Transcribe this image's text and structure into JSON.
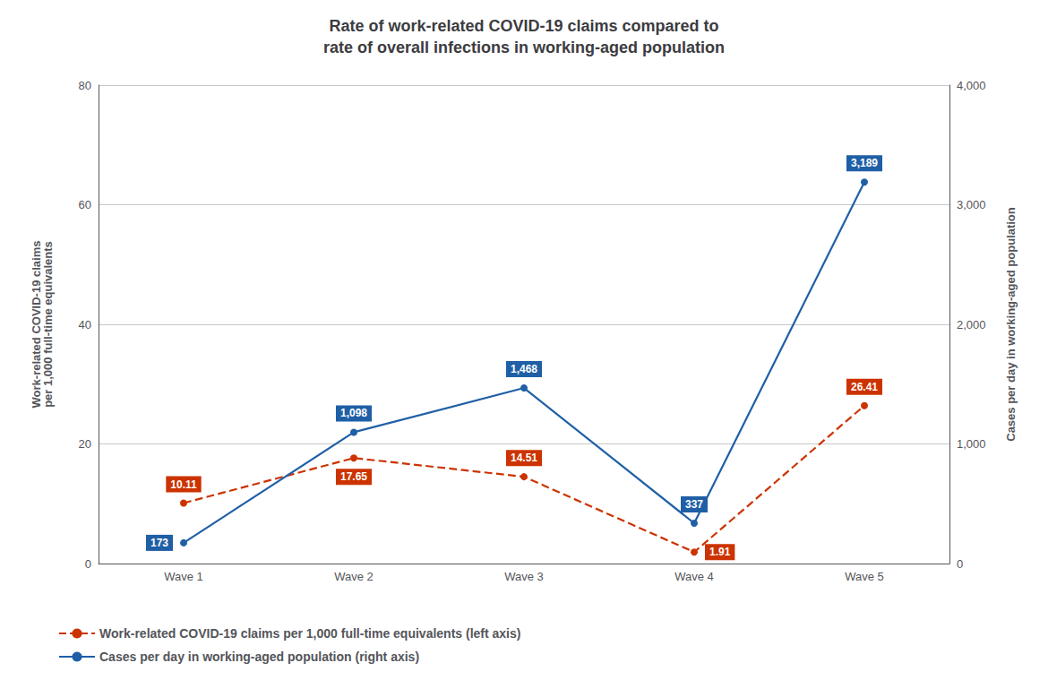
{
  "chart_data": {
    "type": "line",
    "title": "Rate of work-related COVID-19 claims compared to\nrate of overall infections in working-aged population",
    "categories": [
      "Wave 1",
      "Wave 2",
      "Wave 3",
      "Wave 4",
      "Wave 5"
    ],
    "series": [
      {
        "name": "Work-related COVID-19 claims per 1,000 full-time equivalents (left axis)",
        "color": "#cc3300",
        "line_style": "dashed",
        "marker": "circle",
        "values": [
          10.11,
          17.65,
          14.51,
          1.91,
          26.41
        ]
      },
      {
        "name": "Cases per day in working-aged population (right axis)",
        "color": "#1f5fa6",
        "line_style": "solid",
        "marker": "circle",
        "axis": "y2",
        "values": [
          173,
          1098,
          1468,
          337,
          3189
        ],
        "value_labels": [
          "173",
          "1,098",
          "1,468",
          "337",
          "3,189"
        ]
      }
    ],
    "ylabel": "Work-related COVID-19 claims\nper 1,000 full-time equivalents",
    "y2label": "Cases per day in working-aged population",
    "ylim": [
      0,
      80
    ],
    "yticks": [
      0,
      20,
      40,
      60,
      80
    ],
    "y2lim": [
      0,
      4000
    ],
    "y2ticks": [
      0,
      {
        "value": 1000,
        "label": "1,000"
      },
      {
        "value": 2000,
        "label": "2,000"
      },
      {
        "value": 3000,
        "label": "3,000"
      },
      {
        "value": 4000,
        "label": "4,000"
      }
    ],
    "grid": true,
    "legend": "bottom",
    "data_labels": true
  }
}
